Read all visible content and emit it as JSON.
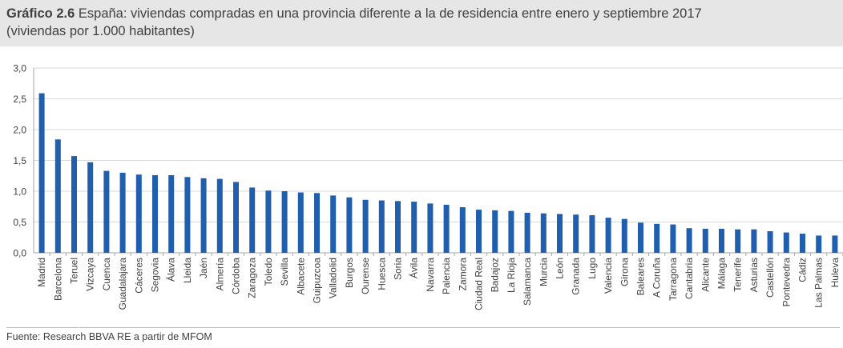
{
  "header": {
    "title_number": "Gráfico 2.6",
    "title_text": " España: viviendas compradas en una provincia diferente a la de residencia entre enero y septiembre 2017",
    "subtitle": "(viviendas por 1.000 habitantes)"
  },
  "footer": {
    "source": "Fuente: Research BBVA RE a partir de MFOM"
  },
  "colors": {
    "bar": "#1f5fae",
    "grid": "#d9d9d9",
    "text": "#404040",
    "header_bg": "#e6e6e6"
  },
  "chart_data": {
    "type": "bar",
    "title": "España: viviendas compradas en una provincia diferente a la de residencia entre enero y septiembre 2017",
    "ylabel": "viviendas por 1.000 habitantes",
    "xlabel": "",
    "ylim": [
      0,
      3.0
    ],
    "yticks": [
      "0,0",
      "0,5",
      "1,0",
      "1,5",
      "2,0",
      "2,5",
      "3,0"
    ],
    "grid": true,
    "categories": [
      "Madrid",
      "Barcelona",
      "Teruel",
      "Vizcaya",
      "Cuenca",
      "Guadalajara",
      "Cáceres",
      "Segovia",
      "Álava",
      "Lleida",
      "Jaén",
      "Almería",
      "Córdoba",
      "Zaragoza",
      "Toledo",
      "Sevilla",
      "Albacete",
      "Guipuzcoa",
      "Valladolid",
      "Burgos",
      "Ourense",
      "Huesca",
      "Soria",
      "Ávila",
      "Navarra",
      "Palencia",
      "Zamora",
      "Ciudad Real",
      "Badajoz",
      "La Rioja",
      "Salamanca",
      "Murcia",
      "León",
      "Granada",
      "Lugo",
      "Valencia",
      "Girona",
      "Baleares",
      "A Coruña",
      "Tarragona",
      "Cantabria",
      "Alicante",
      "Málaga",
      "Tenerife",
      "Asturias",
      "Castellón",
      "Pontevedra",
      "Cádiz",
      "Las Palmas",
      "Huleva"
    ],
    "values": [
      2.59,
      1.84,
      1.57,
      1.47,
      1.33,
      1.3,
      1.27,
      1.26,
      1.26,
      1.23,
      1.21,
      1.2,
      1.15,
      1.06,
      1.01,
      1.0,
      0.98,
      0.97,
      0.93,
      0.9,
      0.86,
      0.85,
      0.84,
      0.83,
      0.8,
      0.78,
      0.74,
      0.7,
      0.69,
      0.68,
      0.65,
      0.64,
      0.63,
      0.62,
      0.61,
      0.57,
      0.55,
      0.49,
      0.47,
      0.46,
      0.4,
      0.39,
      0.39,
      0.38,
      0.38,
      0.35,
      0.33,
      0.31,
      0.28,
      0.28
    ]
  }
}
